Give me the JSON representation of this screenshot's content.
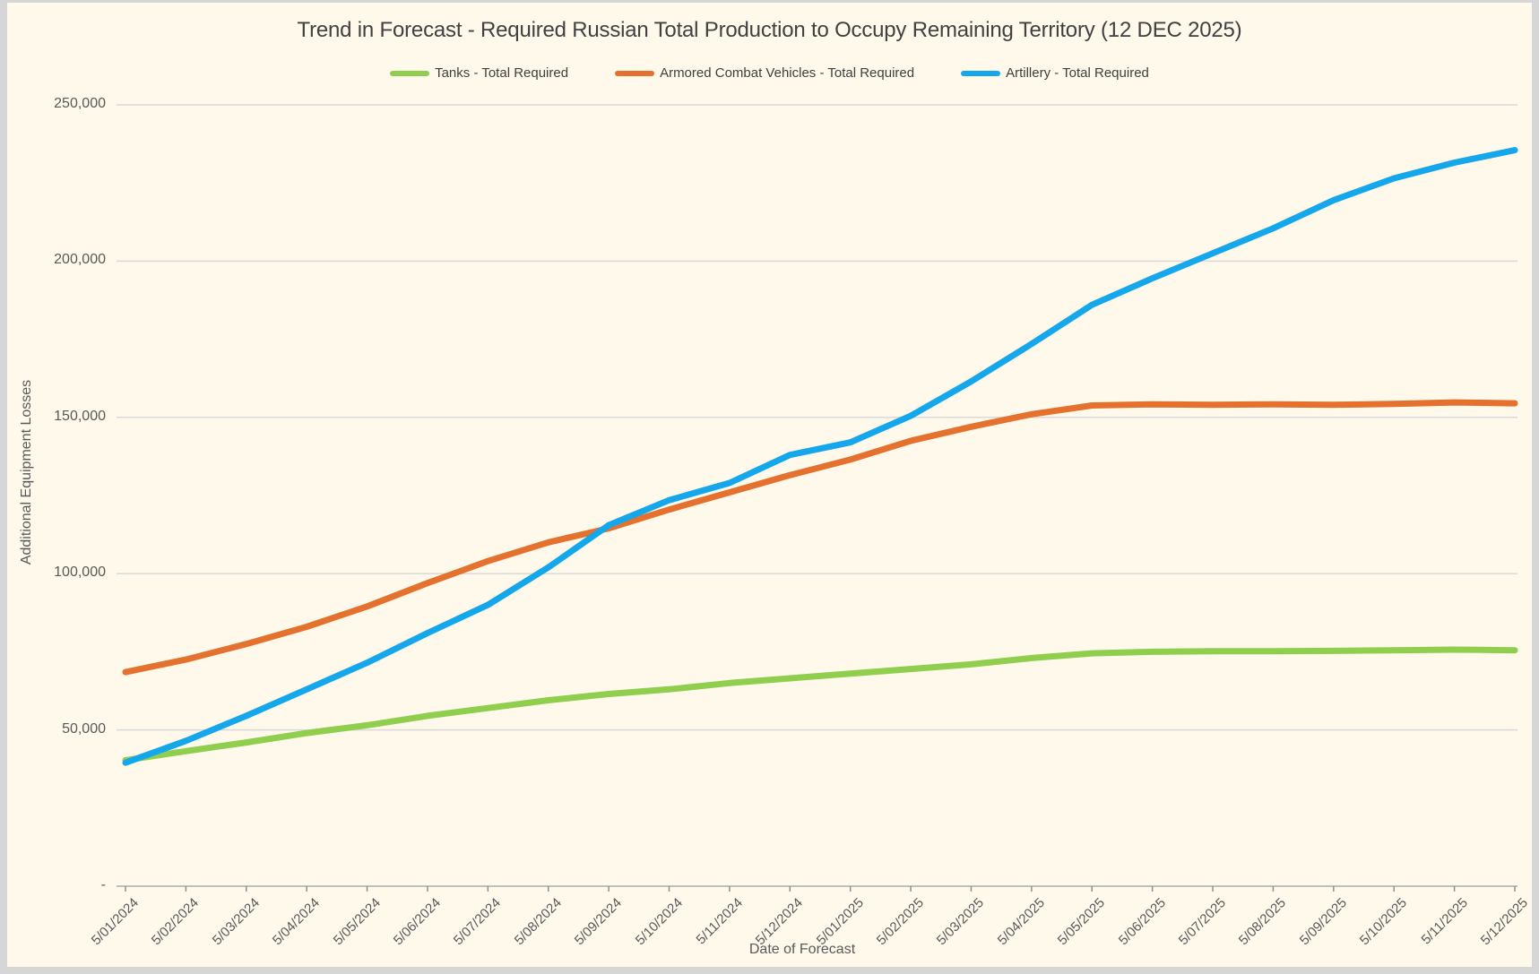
{
  "title": "Trend in Forecast - Required Russian Total Production to Occupy Remaining Territory (12 DEC 2025)",
  "colors": {
    "background": "#fff9ec",
    "frame": "#d6d6d6",
    "gridline": "#d9d9d9",
    "axis_line": "#bfbfbf",
    "tick_mark": "#8f8f8f",
    "title_text": "#414141",
    "axis_text": "#595959",
    "tanks_green": "#90ce4d",
    "armored_orange": "#e4712d",
    "artillery_blue": "#14a7ec"
  },
  "legend": [
    {
      "label": "Tanks - Total Required",
      "color": "#90ce4d"
    },
    {
      "label": "Armored Combat Vehicles - Total Required",
      "color": "#e4712d"
    },
    {
      "label": "Artillery - Total Required",
      "color": "#14a7ec"
    }
  ],
  "y_axis": {
    "title": "Additional Equipment Losses",
    "tick_labels": [
      "-",
      "50,000",
      "100,000",
      "150,000",
      "200,000",
      "250,000"
    ],
    "tick_values": [
      0,
      50000,
      100000,
      150000,
      200000,
      250000
    ]
  },
  "x_axis": {
    "title": "Date of Forecast"
  },
  "chart_data": {
    "type": "line",
    "title": "Trend in Forecast - Required Russian Total Production to Occupy Remaining Territory (12 DEC 2025)",
    "xlabel": "Date of Forecast",
    "ylabel": "Additional Equipment Losses",
    "ylim": [
      0,
      250000
    ],
    "grid": "horizontal",
    "legend_position": "top",
    "x": [
      "5/01/2024",
      "5/02/2024",
      "5/03/2024",
      "5/04/2024",
      "5/05/2024",
      "5/06/2024",
      "5/07/2024",
      "5/08/2024",
      "5/09/2024",
      "5/10/2024",
      "5/11/2024",
      "5/12/2024",
      "5/01/2025",
      "5/02/2025",
      "5/03/2025",
      "5/04/2025",
      "5/05/2025",
      "5/06/2025",
      "5/07/2025",
      "5/08/2025",
      "5/09/2025",
      "5/10/2025",
      "5/11/2025",
      "5/12/2025"
    ],
    "series": [
      {
        "name": "Tanks - Total Required",
        "color": "#90ce4d",
        "values": [
          40300,
          43200,
          46000,
          49000,
          51500,
          54500,
          57000,
          59500,
          61500,
          63000,
          65000,
          66500,
          68000,
          69500,
          71000,
          73000,
          74500,
          75000,
          75200,
          75200,
          75300,
          75500,
          75700,
          75500
        ]
      },
      {
        "name": "Armored Combat Vehicles - Total Required",
        "color": "#e4712d",
        "values": [
          68500,
          72500,
          77500,
          83000,
          89500,
          97000,
          104000,
          110000,
          114500,
          120500,
          126000,
          131500,
          136500,
          142500,
          147000,
          151000,
          153800,
          154200,
          154000,
          154200,
          154000,
          154300,
          154800,
          154500
        ]
      },
      {
        "name": "Artillery - Total Required",
        "color": "#14a7ec",
        "values": [
          39500,
          46500,
          54500,
          63000,
          71500,
          81000,
          90000,
          102000,
          115500,
          123500,
          129000,
          138000,
          142000,
          150500,
          161500,
          173500,
          186000,
          194500,
          202500,
          210500,
          219500,
          226500,
          231500,
          235500
        ]
      }
    ]
  }
}
